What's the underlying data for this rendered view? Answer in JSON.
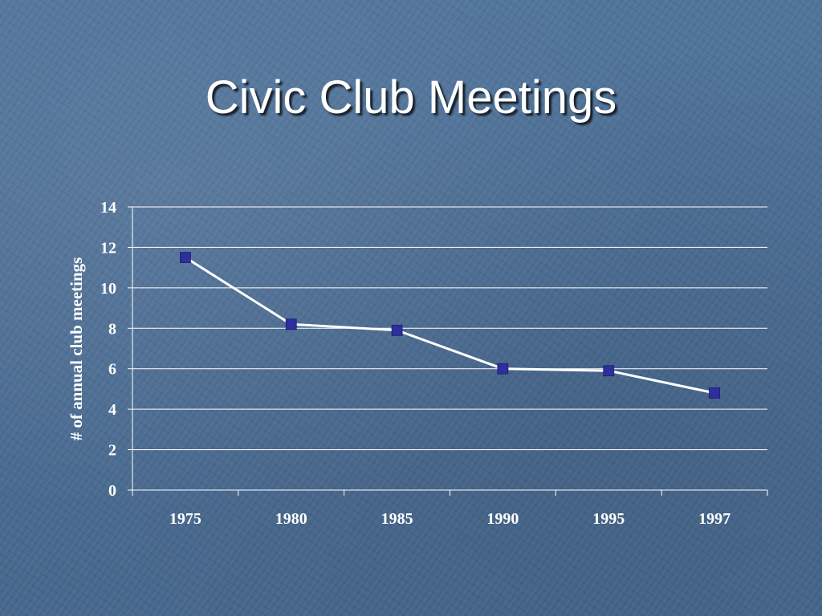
{
  "slide": {
    "title": "Civic Club Meetings"
  },
  "colors": {
    "background": "#4a6d94",
    "line": "#ffffff",
    "marker": "#2e2e9c",
    "grid": "#ffffff"
  },
  "chart_data": {
    "type": "line",
    "title": "Civic Club Meetings",
    "xlabel": "",
    "ylabel": "# of annual club meetings",
    "categories": [
      "1975",
      "1980",
      "1985",
      "1990",
      "1995",
      "1997"
    ],
    "series": [
      {
        "values": [
          11.5,
          8.2,
          7.9,
          6.0,
          5.9,
          4.8
        ]
      }
    ],
    "ylim": [
      0,
      14
    ],
    "yticks": [
      "0",
      "2",
      "4",
      "6",
      "8",
      "10",
      "12",
      "14"
    ],
    "grid": true,
    "legend": "none"
  }
}
